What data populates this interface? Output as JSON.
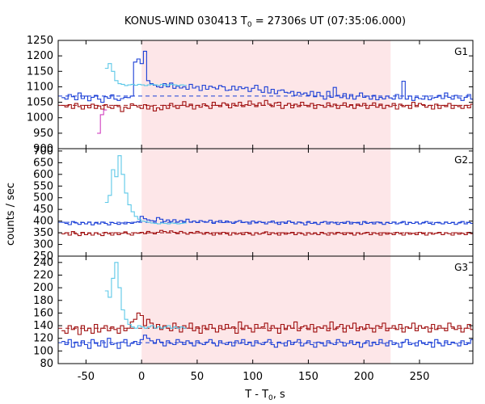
{
  "chart_data": {
    "type": "line",
    "title_main": "KONUS-WIND 030413 T",
    "title_sub": "0",
    "title_rest": " = 27306s UT (07:35:06.000)",
    "xlabel_main": "T - T",
    "xlabel_sub": "0",
    "xlabel_rest": ", s",
    "ylabel": "counts / sec",
    "xlim": [
      -75,
      298
    ],
    "xticks": [
      -50,
      0,
      50,
      100,
      150,
      200,
      250
    ],
    "highlight_interval": [
      0,
      224
    ],
    "colors": {
      "blue": "#1a3fd6",
      "red": "#a01010",
      "cyan": "#5cc8e8",
      "magenta": "#d040c0",
      "highlight": "#fde6e8"
    },
    "panels": [
      {
        "label": "G1",
        "ylim": [
          900,
          1250
        ],
        "yticks": [
          900,
          950,
          1000,
          1050,
          1100,
          1150,
          1200,
          1250
        ],
        "bg_blue": 1070,
        "bg_red": 1040,
        "series": {
          "blue": {
            "t0": -72,
            "dt": 2.944,
            "values": [
              1065,
              1060,
              1075,
              1068,
              1058,
              1080,
              1062,
              1070,
              1055,
              1066,
              1072,
              1060,
              1050,
              1068,
              1063,
              1074,
              1060,
              1056,
              1062,
              1066,
              1065,
              1070,
              1180,
              1190,
              1175,
              1215,
              1120,
              1110,
              1105,
              1100,
              1098,
              1110,
              1100,
              1112,
              1095,
              1102,
              1096,
              1100,
              1092,
              1108,
              1096,
              1101,
              1088,
              1105,
              1092,
              1102,
              1098,
              1093,
              1104,
              1100,
              1088,
              1090,
              1102,
              1090,
              1100,
              1094,
              1098,
              1085,
              1095,
              1105,
              1090,
              1082,
              1100,
              1080,
              1092,
              1078,
              1088,
              1090,
              1082,
              1080,
              1085,
              1072,
              1082,
              1076,
              1080,
              1072,
              1085,
              1068,
              1082,
              1070,
              1060,
              1085,
              1066,
              1098,
              1072,
              1065,
              1078,
              1062,
              1075,
              1060,
              1070,
              1080,
              1066,
              1070,
              1060,
              1072,
              1058,
              1066,
              1061,
              1070,
              1064,
              1060,
              1075,
              1062,
              1118,
              1060,
              1070,
              1056,
              1066,
              1062,
              1060,
              1070,
              1058,
              1064,
              1066,
              1072,
              1062,
              1080,
              1066,
              1060,
              1072,
              1064,
              1056,
              1066,
              1075,
              1060,
              1068,
              1058,
              1084,
              1062
            ]
          },
          "red": {
            "t0": -72,
            "dt": 2.944,
            "values": [
              1040,
              1035,
              1042,
              1030,
              1046,
              1036,
              1028,
              1040,
              1032,
              1044,
              1030,
              1038,
              1028,
              1042,
              1034,
              1030,
              1040,
              1036,
              1020,
              1034,
              1030,
              1045,
              1040,
              1035,
              1030,
              1042,
              1028,
              1038,
              1022,
              1032,
              1026,
              1040,
              1030,
              1046,
              1036,
              1030,
              1040,
              1052,
              1036,
              1044,
              1028,
              1040,
              1034,
              1045,
              1038,
              1030,
              1050,
              1040,
              1036,
              1048,
              1044,
              1032,
              1046,
              1038,
              1050,
              1036,
              1042,
              1054,
              1044,
              1036,
              1048,
              1040,
              1056,
              1044,
              1036,
              1048,
              1050,
              1030,
              1040,
              1046,
              1032,
              1044,
              1036,
              1050,
              1040,
              1036,
              1046,
              1030,
              1042,
              1040,
              1034,
              1048,
              1036,
              1044,
              1030,
              1040,
              1048,
              1035,
              1042,
              1030,
              1044,
              1038,
              1046,
              1030,
              1040,
              1048,
              1034,
              1044,
              1030,
              1040,
              1036,
              1046,
              1028,
              1044,
              1036,
              1040,
              1030,
              1050,
              1036,
              1046,
              1042,
              1034,
              1040,
              1028,
              1044,
              1030,
              1040,
              1036,
              1046,
              1030,
              1040,
              1036,
              1030,
              1040,
              1032,
              1044,
              1036,
              1018,
              1010,
              1000
            ]
          },
          "cyan": {
            "t0": -33,
            "dt": 2.944,
            "values": [
              1160,
              1175,
              1150,
              1120,
              1110,
              1108,
              1104,
              1106,
              1108,
              1105,
              1108,
              1106,
              1104,
              1106,
              1108,
              1106,
              1105,
              1108,
              1104,
              1106,
              1108,
              1106,
              1104,
              1106,
              1105
            ]
          },
          "magenta": {
            "t0": -40,
            "dt": 2.944,
            "values": [
              950,
              1010,
              1025
            ]
          }
        }
      },
      {
        "label": "G2",
        "ylim": [
          250,
          710
        ],
        "yticks": [
          250,
          300,
          350,
          400,
          450,
          500,
          550,
          600,
          650,
          700
        ],
        "bg_blue": 395,
        "bg_red": 350,
        "series": {
          "blue": {
            "t0": -72,
            "dt": 2.944,
            "values": [
              395,
              390,
              385,
              398,
              392,
              386,
              394,
              388,
              396,
              384,
              392,
              388,
              396,
              390,
              384,
              394,
              390,
              386,
              392,
              388,
              394,
              390,
              395,
              398,
              420,
              410,
              405,
              402,
              400,
              415,
              408,
              398,
              405,
              398,
              406,
              396,
              402,
              398,
              408,
              396,
              400,
              394,
              402,
              398,
              396,
              404,
              390,
              398,
              402,
              394,
              400,
              396,
              390,
              398,
              402,
              394,
              396,
              388,
              400,
              392,
              398,
              394,
              388,
              396,
              400,
              392,
              386,
              396,
              390,
              400,
              394,
              388,
              396,
              392,
              384,
              398,
              390,
              392,
              386,
              394,
              398,
              388,
              396,
              392,
              386,
              394,
              390,
              398,
              388,
              394,
              392,
              386,
              398,
              390,
              394,
              388,
              396,
              392,
              386,
              394,
              390,
              396,
              388,
              392,
              398,
              386,
              394,
              390,
              396,
              388,
              392,
              398,
              390,
              386,
              394,
              392,
              388,
              396,
              390,
              394,
              386,
              392,
              398,
              388,
              394,
              390,
              392,
              386,
              396,
              392
            ]
          },
          "red": {
            "t0": -72,
            "dt": 2.944,
            "values": [
              345,
              350,
              340,
              355,
              345,
              338,
              352,
              342,
              348,
              340,
              350,
              344,
              338,
              352,
              346,
              340,
              350,
              342,
              348,
              354,
              345,
              340,
              350,
              348,
              352,
              346,
              356,
              350,
              345,
              352,
              360,
              355,
              350,
              358,
              352,
              346,
              356,
              350,
              344,
              352,
              348,
              356,
              350,
              344,
              352,
              346,
              340,
              350,
              344,
              352,
              346,
              340,
              350,
              344,
              348,
              342,
              352,
              346,
              340,
              350,
              344,
              348,
              354,
              342,
              350,
              346,
              340,
              350,
              344,
              348,
              352,
              342,
              350,
              346,
              340,
              350,
              344,
              348,
              342,
              352,
              346,
              340,
              350,
              344,
              352,
              348,
              342,
              350,
              346,
              340,
              350,
              344,
              348,
              352,
              342,
              350,
              346,
              340,
              350,
              344,
              348,
              342,
              352,
              346,
              340,
              350,
              344,
              348,
              342,
              352,
              346,
              340,
              350,
              344,
              348,
              352,
              342,
              350,
              346,
              340,
              350,
              344,
              348,
              342,
              352,
              346,
              340,
              350,
              344,
              348
            ]
          },
          "cyan": {
            "t0": -33,
            "dt": 2.944,
            "values": [
              480,
              510,
              620,
              590,
              680,
              600,
              520,
              470,
              440,
              420,
              408,
              400,
              398,
              395,
              392,
              390,
              388,
              392,
              390,
              388,
              392,
              390,
              388,
              390,
              392
            ]
          }
        }
      },
      {
        "label": "G3",
        "ylim": [
          80,
          250
        ],
        "yticks": [
          80,
          100,
          120,
          140,
          160,
          180,
          200,
          220,
          240
        ],
        "bg_blue": 113,
        "bg_red": 136,
        "series": {
          "blue": {
            "t0": -72,
            "dt": 2.944,
            "values": [
              115,
              110,
              118,
              106,
              114,
              108,
              116,
              110,
              104,
              118,
              112,
              108,
              116,
              106,
              120,
              110,
              112,
              104,
              114,
              118,
              108,
              112,
              115,
              110,
              118,
              125,
              120,
              116,
              112,
              118,
              114,
              108,
              116,
              112,
              110,
              118,
              114,
              110,
              116,
              112,
              108,
              116,
              112,
              110,
              114,
              118,
              112,
              108,
              116,
              112,
              110,
              114,
              108,
              116,
              112,
              118,
              110,
              114,
              108,
              116,
              112,
              110,
              114,
              118,
              110,
              106,
              114,
              112,
              108,
              116,
              110,
              114,
              118,
              108,
              112,
              116,
              110,
              106,
              114,
              112,
              108,
              116,
              112,
              110,
              118,
              114,
              108,
              112,
              116,
              110,
              114,
              106,
              112,
              116,
              108,
              114,
              110,
              118,
              112,
              108,
              116,
              110,
              112,
              106,
              114,
              118,
              110,
              112,
              108,
              116,
              112,
              110,
              114,
              106,
              118,
              112,
              108,
              116,
              110,
              114,
              112,
              108,
              116,
              110,
              112,
              118,
              108,
              114,
              110,
              112
            ]
          },
          "red": {
            "t0": -72,
            "dt": 2.944,
            "values": [
              132,
              128,
              140,
              134,
              138,
              126,
              140,
              132,
              136,
              128,
              142,
              130,
              136,
              140,
              132,
              138,
              134,
              128,
              140,
              132,
              136,
              146,
              150,
              160,
              156,
              140,
              150,
              144,
              136,
              142,
              134,
              140,
              136,
              132,
              144,
              138,
              130,
              140,
              136,
              144,
              132,
              138,
              128,
              140,
              134,
              142,
              136,
              130,
              140,
              134,
              142,
              136,
              138,
              128,
              146,
              134,
              140,
              136,
              130,
              142,
              136,
              138,
              144,
              132,
              140,
              136,
              128,
              142,
              134,
              140,
              136,
              146,
              132,
              138,
              140,
              134,
              142,
              130,
              138,
              136,
              140,
              132,
              146,
              134,
              138,
              142,
              130,
              140,
              136,
              144,
              132,
              138,
              134,
              142,
              136,
              130,
              140,
              138,
              144,
              132,
              136,
              140,
              134,
              142,
              130,
              138,
              136,
              144,
              132,
              140,
              136,
              138,
              130,
              142,
              134,
              140,
              136,
              132,
              144,
              138,
              134,
              140,
              130,
              136,
              142,
              134,
              138,
              132,
              140,
              136
            ]
          },
          "cyan": {
            "t0": -33,
            "dt": 2.944,
            "values": [
              195,
              185,
              215,
              240,
              200,
              165,
              150,
              142,
              138,
              136,
              140,
              138,
              136,
              138,
              140,
              136,
              138,
              136,
              138,
              140,
              136,
              138,
              136,
              138,
              136
            ]
          }
        }
      }
    ]
  }
}
